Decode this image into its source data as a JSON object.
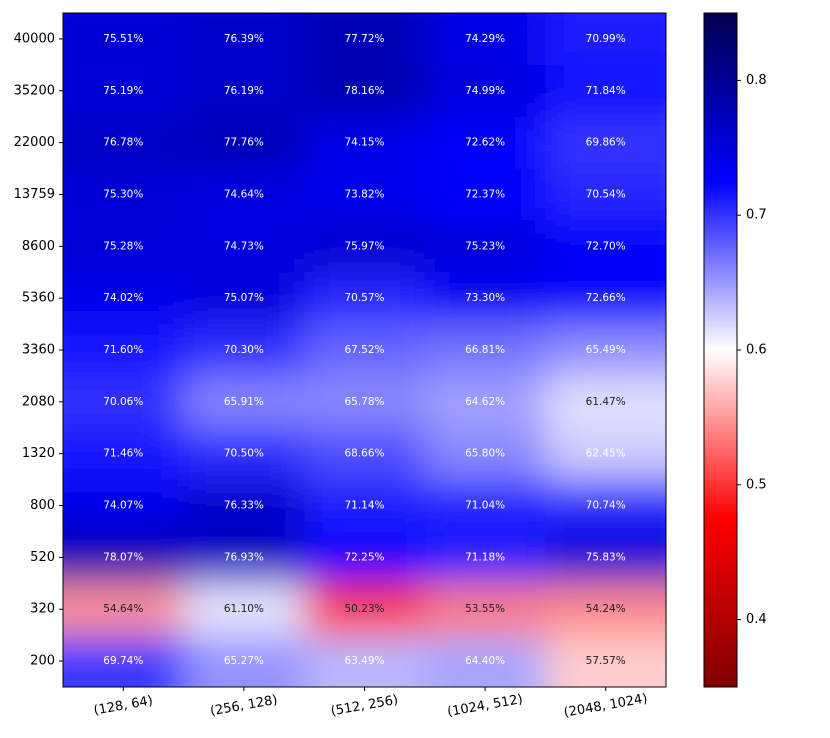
{
  "chart_data": {
    "type": "heatmap",
    "title": "",
    "xlabel": "",
    "ylabel": "",
    "x_categories": [
      "(128, 64)",
      "(256, 128)",
      "(512, 256)",
      "(1024, 512)",
      "(2048, 1024)"
    ],
    "y_categories": [
      "40000",
      "35200",
      "22000",
      "13759",
      "8600",
      "5360",
      "3360",
      "2080",
      "1320",
      "800",
      "520",
      "320",
      "200"
    ],
    "values": [
      [
        0.7551,
        0.7639,
        0.7772,
        0.7429,
        0.7099
      ],
      [
        0.7519,
        0.7619,
        0.7816,
        0.7499,
        0.7184
      ],
      [
        0.7678,
        0.7776,
        0.7415,
        0.7262,
        0.6986
      ],
      [
        0.753,
        0.7464,
        0.7382,
        0.7237,
        0.7054
      ],
      [
        0.7528,
        0.7473,
        0.7597,
        0.7523,
        0.727
      ],
      [
        0.7402,
        0.7507,
        0.7057,
        0.733,
        0.7266
      ],
      [
        0.716,
        0.703,
        0.6752,
        0.6681,
        0.6549
      ],
      [
        0.7006,
        0.6591,
        0.6578,
        0.6462,
        0.6147
      ],
      [
        0.7146,
        0.705,
        0.6866,
        0.658,
        0.6245
      ],
      [
        0.7407,
        0.7633,
        0.7114,
        0.7104,
        0.7074
      ],
      [
        0.7807,
        0.7693,
        0.7225,
        0.7118,
        0.7583
      ],
      [
        0.5464,
        0.611,
        0.5023,
        0.5355,
        0.5424
      ],
      [
        0.6974,
        0.6527,
        0.6349,
        0.644,
        0.5757
      ]
    ],
    "cell_labels": [
      [
        "75.51%",
        "76.39%",
        "77.72%",
        "74.29%",
        "70.99%"
      ],
      [
        "75.19%",
        "76.19%",
        "78.16%",
        "74.99%",
        "71.84%"
      ],
      [
        "76.78%",
        "77.76%",
        "74.15%",
        "72.62%",
        "69.86%"
      ],
      [
        "75.30%",
        "74.64%",
        "73.82%",
        "72.37%",
        "70.54%"
      ],
      [
        "75.28%",
        "74.73%",
        "75.97%",
        "75.23%",
        "72.70%"
      ],
      [
        "74.02%",
        "75.07%",
        "70.57%",
        "73.30%",
        "72.66%"
      ],
      [
        "71.60%",
        "70.30%",
        "67.52%",
        "66.81%",
        "65.49%"
      ],
      [
        "70.06%",
        "65.91%",
        "65.78%",
        "64.62%",
        "61.47%"
      ],
      [
        "71.46%",
        "70.50%",
        "68.66%",
        "65.80%",
        "62.45%"
      ],
      [
        "74.07%",
        "76.33%",
        "71.14%",
        "71.04%",
        "70.74%"
      ],
      [
        "78.07%",
        "76.93%",
        "72.25%",
        "71.18%",
        "75.83%"
      ],
      [
        "54.64%",
        "61.10%",
        "50.23%",
        "53.55%",
        "54.24%"
      ],
      [
        "69.74%",
        "65.27%",
        "63.49%",
        "64.40%",
        "57.57%"
      ]
    ],
    "colormap": "seismic_r",
    "colormap_stops": [
      "#800000",
      "#ff0000",
      "#ffffff",
      "#0000ff",
      "#000050"
    ],
    "color_range": [
      0.35,
      0.85
    ],
    "colorbar_ticks": [
      0.8,
      0.7,
      0.6,
      0.5,
      0.4
    ],
    "colorbar_tick_labels": [
      "0.8",
      "0.7",
      "0.6",
      "0.5",
      "0.4"
    ],
    "x_tick_rotation_deg": 10,
    "grid": false
  }
}
